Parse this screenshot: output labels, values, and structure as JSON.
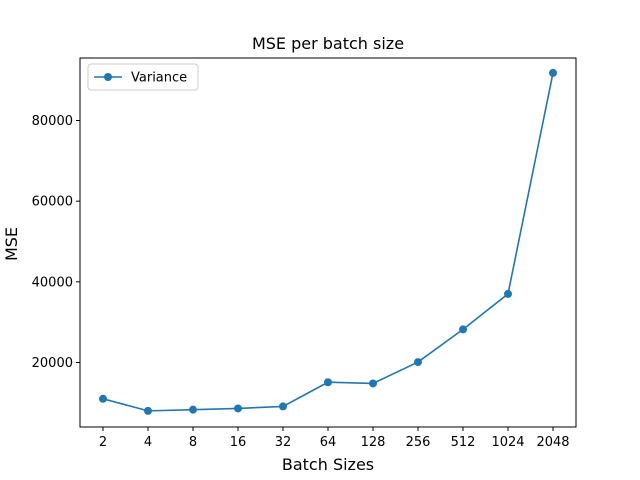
{
  "chart_data": {
    "type": "line",
    "title": "MSE per batch size",
    "xlabel": "Batch Sizes",
    "ylabel": "MSE",
    "categories": [
      "2",
      "4",
      "8",
      "16",
      "32",
      "64",
      "128",
      "256",
      "512",
      "1024",
      "2048"
    ],
    "series": [
      {
        "name": "Variance",
        "color": "#1f77b4",
        "marker": "circle",
        "values": [
          11000,
          8000,
          8300,
          8600,
          9100,
          15100,
          14800,
          20100,
          28200,
          37000,
          91800
        ]
      }
    ],
    "yticks": [
      20000,
      40000,
      60000,
      80000
    ],
    "ytick_labels": [
      "20000",
      "40000",
      "60000",
      "80000"
    ],
    "ylim": [
      4000,
      95500
    ],
    "grid": false,
    "legend_position": "upper-left"
  }
}
